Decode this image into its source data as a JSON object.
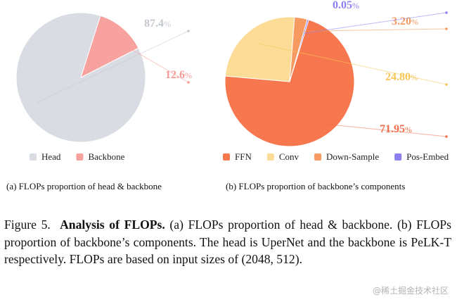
{
  "chart_data": [
    {
      "type": "pie",
      "categories": [
        "Head",
        "Backbone"
      ],
      "values": [
        87.4,
        12.6
      ],
      "labels": [
        "87.4",
        "12.6"
      ],
      "unit": "%",
      "colors": [
        "#d9dde3",
        "#f7a29e"
      ],
      "label_colors": [
        "#c3c8d0",
        "#f59a94"
      ],
      "legend": "bottom",
      "caption": "(a) FLOPs proportion of head & backbone"
    },
    {
      "type": "pie",
      "categories": [
        "FFN",
        "Conv",
        "Down-Sample",
        "Pos-Embed"
      ],
      "values": [
        71.95,
        24.8,
        3.2,
        0.05
      ],
      "labels": [
        "71.95",
        "24.80",
        "3.20",
        "0.05"
      ],
      "unit": "%",
      "colors": [
        "#f7774e",
        "#fddc98",
        "#f79a62",
        "#8b7ff2"
      ],
      "label_colors": [
        "#f26f4c",
        "#f6c659",
        "#f39a5e",
        "#8b7ff2"
      ],
      "legend": "bottom",
      "caption": "(b) FLOPs proportion of backbone’s components"
    }
  ],
  "caption": {
    "prefix": "Figure 5.",
    "title": "Analysis of FLOPs.",
    "body": "(a) FLOPs proportion of head & backbone. (b) FLOPs proportion of backbone’s components. The head is UperNet and the backbone is PeLK-T respectively. FLOPs are based on input sizes of (2048, 512)."
  },
  "watermark": "@稀土掘金技术社区"
}
